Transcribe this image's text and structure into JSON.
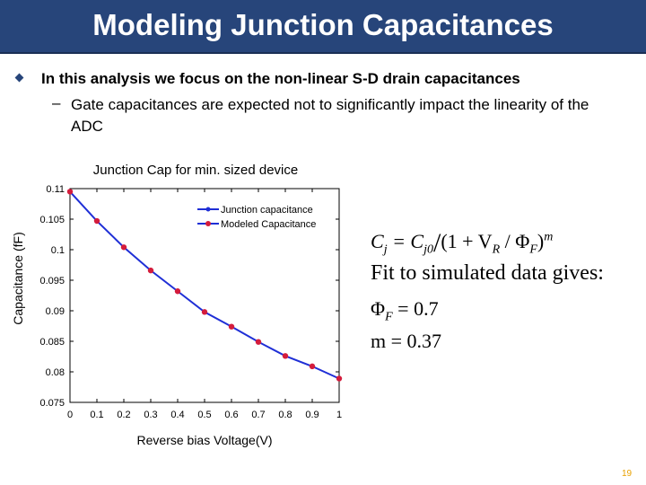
{
  "slide": {
    "title": "Modeling Junction Capacitances",
    "bullet": "In this analysis we focus on the non-linear S-D drain capacitances",
    "sub_dash": "–",
    "sub_bullet": "Gate capacitances are expected not to significantly impact the linearity of the ADC",
    "page_number": "19",
    "accent_color": "#27457a"
  },
  "equations": {
    "model_prefix": "C",
    "model_sub_j": "j",
    "model_eq": " = C",
    "model_sub_j0": "j0",
    "model_slash": "/",
    "model_body": "(1 + V",
    "model_sub_R": "R",
    "model_phi": " / Φ",
    "model_sub_F": "F",
    "model_close": ")",
    "model_exp": "m",
    "fit_text": "Fit to simulated data gives:",
    "phi_prefix": "Φ",
    "phi_sub": "F",
    "phi_value": " = 0.7",
    "m_value": "m = 0.37"
  },
  "chart_data": {
    "type": "line",
    "title": "Junction Cap for min. sized device",
    "xlabel": "Reverse bias Voltage(V)",
    "ylabel": "Capacitance (fF)",
    "xlim": [
      0,
      1
    ],
    "ylim": [
      0.075,
      0.11
    ],
    "x_ticks": [
      "0",
      "0.1",
      "0.2",
      "0.3",
      "0.4",
      "0.5",
      "0.6",
      "0.7",
      "0.8",
      "0.9",
      "1"
    ],
    "y_ticks": [
      "0.075",
      "0.08",
      "0.085",
      "0.09",
      "0.095",
      "0.1",
      "0.105",
      "0.11"
    ],
    "grid": false,
    "legend_position": "top-right",
    "x": [
      0,
      0.1,
      0.2,
      0.3,
      0.4,
      0.5,
      0.6,
      0.7,
      0.8,
      0.9,
      1.0
    ],
    "series": [
      {
        "name": "Junction capacitance",
        "color": "#1f2fd6",
        "marker": "line",
        "values": [
          0.1095,
          0.1047,
          0.1004,
          0.0966,
          0.0932,
          0.0898,
          0.0874,
          0.0849,
          0.0826,
          0.0809,
          0.0789
        ]
      },
      {
        "name": "Modeled Capacitance",
        "color": "#d41c3c",
        "marker": "dot",
        "values": [
          0.1095,
          0.1047,
          0.1004,
          0.0966,
          0.0932,
          0.0898,
          0.0874,
          0.0849,
          0.0826,
          0.0809,
          0.0789
        ]
      }
    ]
  }
}
